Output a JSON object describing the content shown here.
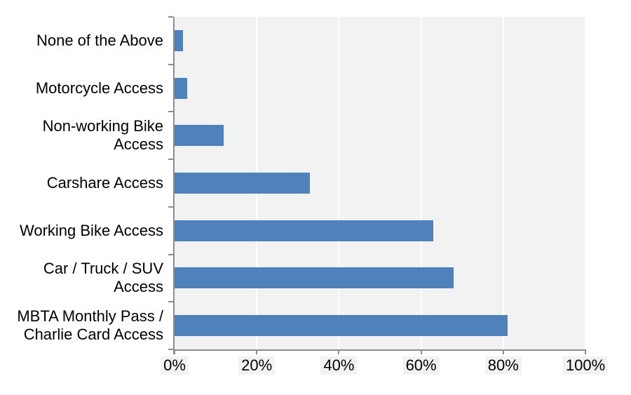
{
  "chart_data": {
    "type": "bar",
    "orientation": "horizontal",
    "title": "",
    "xlabel": "",
    "ylabel": "",
    "categories": [
      "None of the Above",
      "Motorcycle Access",
      "Non-working Bike Access",
      "Carshare Access",
      "Working Bike Access",
      "Car / Truck / SUV Access",
      "MBTA Monthly Pass / Charlie Card Access"
    ],
    "category_lines": [
      [
        "None of the Above"
      ],
      [
        "Motorcycle Access"
      ],
      [
        "Non-working Bike",
        "Access"
      ],
      [
        "Carshare Access"
      ],
      [
        "Working Bike Access"
      ],
      [
        "Car / Truck / SUV",
        "Access"
      ],
      [
        "MBTA Monthly Pass /",
        "Charlie Card Access"
      ]
    ],
    "values": [
      2,
      3,
      12,
      33,
      63,
      68,
      81
    ],
    "value_unit": "%",
    "xlim": [
      0,
      100
    ],
    "x_tick_values": [
      0,
      20,
      40,
      60,
      80,
      100
    ],
    "x_tick_labels": [
      "0%",
      "20%",
      "40%",
      "60%",
      "80%",
      "100%"
    ],
    "grid": true,
    "legend": false,
    "colors": {
      "bar": "#4F81BD",
      "plot_background": "#F2F2F2",
      "gridline": "#FFFFFF",
      "axis": "#8C8C8C",
      "text": "#000000",
      "tick_label_background": "#F2F2F2"
    }
  }
}
